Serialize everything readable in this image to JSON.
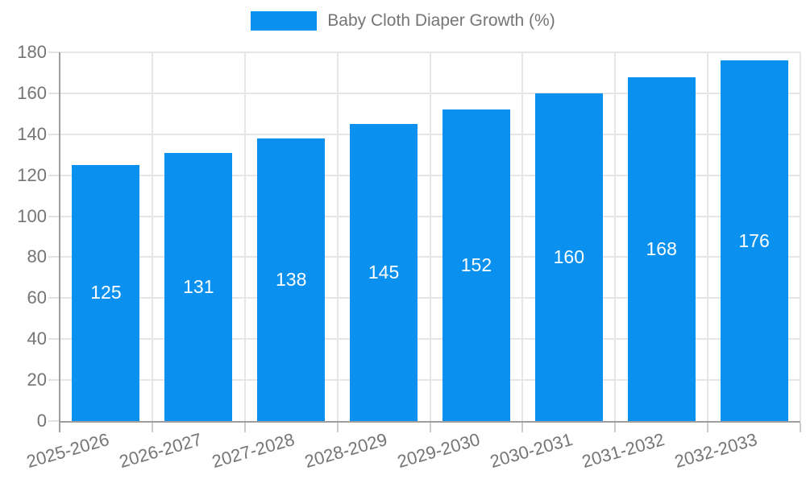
{
  "chart_data": {
    "type": "bar",
    "title": "Baby Cloth Diaper Growth (%)",
    "legend_entries": [
      "Baby Cloth Diaper Growth (%)"
    ],
    "categories": [
      "2025-2026",
      "2026-2027",
      "2027-2028",
      "2028-2029",
      "2029-2030",
      "2030-2031",
      "2031-2032",
      "2032-2033"
    ],
    "values": [
      125,
      131,
      138,
      145,
      152,
      160,
      168,
      176
    ],
    "xlabel": "",
    "ylabel": "",
    "ylim": [
      0,
      180
    ],
    "ytick_step": 20,
    "grid": true,
    "legend_position": "top",
    "bar_color": "#0a91f0",
    "bar_value_label_color": "#ffffff",
    "axis_text_color": "#757575",
    "gridline_color": "#e6e6e6",
    "axis_line_color": "#9e9e9e"
  }
}
